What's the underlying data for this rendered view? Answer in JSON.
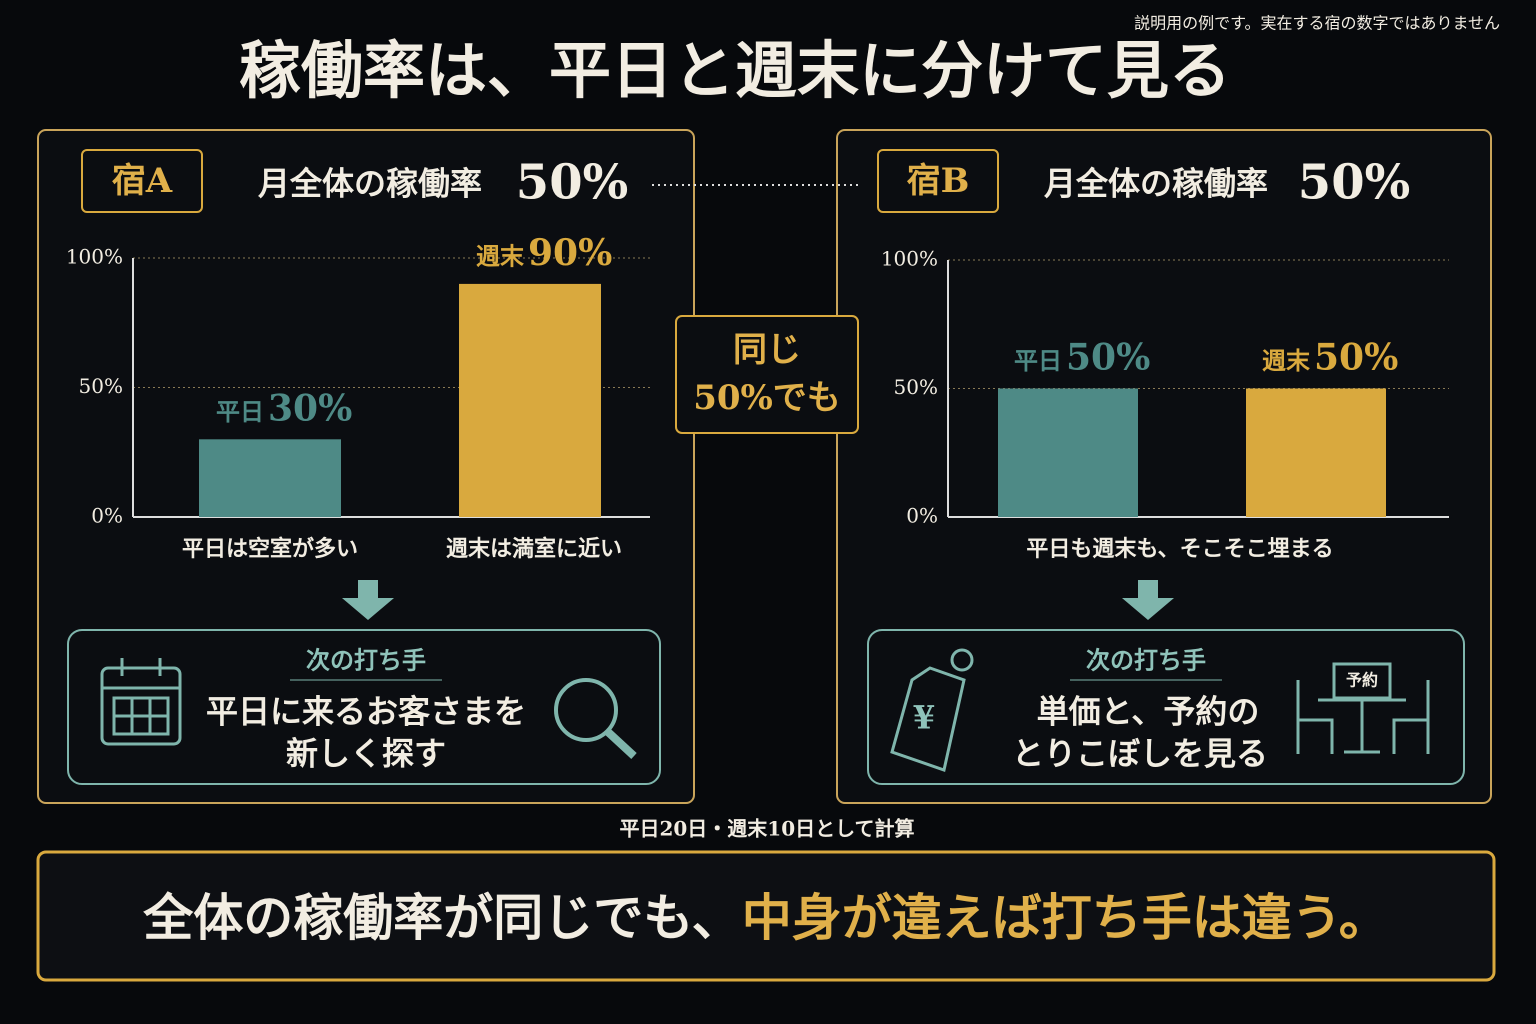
{
  "note": "説明用の例です。実在する宿の数字ではありません",
  "title": "稼働率は、平日と週末に分けて見る",
  "panels": [
    {
      "name": "宿A",
      "overall_label": "月全体の稼働率",
      "overall": "50%",
      "captions": [
        "平日は空室が多い",
        "週末は満室に近い"
      ],
      "next_label": "次の打ち手",
      "next_lines": [
        "平日に来るお客さまを",
        "新しく探す"
      ]
    },
    {
      "name": "宿B",
      "overall_label": "月全体の稼働率",
      "overall": "50%",
      "captions": [
        "平日も週末も、そこそこ埋まる"
      ],
      "next_label": "次の打ち手",
      "next_lines": [
        "単価と、予約の",
        "とりこぼしを見る"
      ],
      "icon_text": "予約"
    }
  ],
  "badge": [
    "同じ",
    "50%でも"
  ],
  "footnote": "平日20日・週末10日として計算",
  "banner": [
    "全体の稼働率が同じでも、",
    "中身が違えば打ち手は違う。"
  ],
  "chart_data": [
    {
      "type": "bar",
      "categories": [
        "平日",
        "週末"
      ],
      "values": [
        30,
        90
      ],
      "value_labels": [
        "30%",
        "90%"
      ],
      "colors": [
        "#4e8a86",
        "#d9a93e"
      ],
      "ylim": [
        0,
        100
      ],
      "yticks": [
        {
          "value": 0,
          "label": "0%"
        },
        {
          "value": 50,
          "label": "50%"
        },
        {
          "value": 100,
          "label": "100%"
        }
      ],
      "grid": true
    },
    {
      "type": "bar",
      "categories": [
        "平日",
        "週末"
      ],
      "values": [
        50,
        50
      ],
      "value_labels": [
        "50%",
        "50%"
      ],
      "colors": [
        "#4e8a86",
        "#d9a93e"
      ],
      "ylim": [
        0,
        100
      ],
      "yticks": [
        {
          "value": 0,
          "label": "0%"
        },
        {
          "value": 50,
          "label": "50%"
        },
        {
          "value": 100,
          "label": "100%"
        }
      ],
      "grid": true
    }
  ]
}
